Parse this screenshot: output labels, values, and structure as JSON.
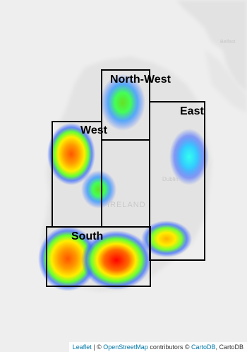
{
  "map": {
    "regions": [
      {
        "id": "north-west",
        "label": "North-West"
      },
      {
        "id": "east",
        "label": "East"
      },
      {
        "id": "west",
        "label": "West"
      },
      {
        "id": "south",
        "label": "South"
      }
    ],
    "place_labels": {
      "ireland": "IRELAND",
      "dublin": "Dublin",
      "top_right": "Belfast"
    },
    "attribution": {
      "leaflet": "Leaflet",
      "sep1": " | © ",
      "osm": "OpenStreetMap",
      "contributors": " contributors © ",
      "cartodb_link": "CartoDB",
      "sep2": ", CartoDB"
    }
  },
  "colors": {
    "heat_high": "#ff0000",
    "heat_mid": "#ffff00",
    "heat_low": "#00ff00",
    "heat_edge": "#0000ff",
    "link": "#0078a8",
    "region_border": "#000000",
    "map_background": "#ececec"
  }
}
